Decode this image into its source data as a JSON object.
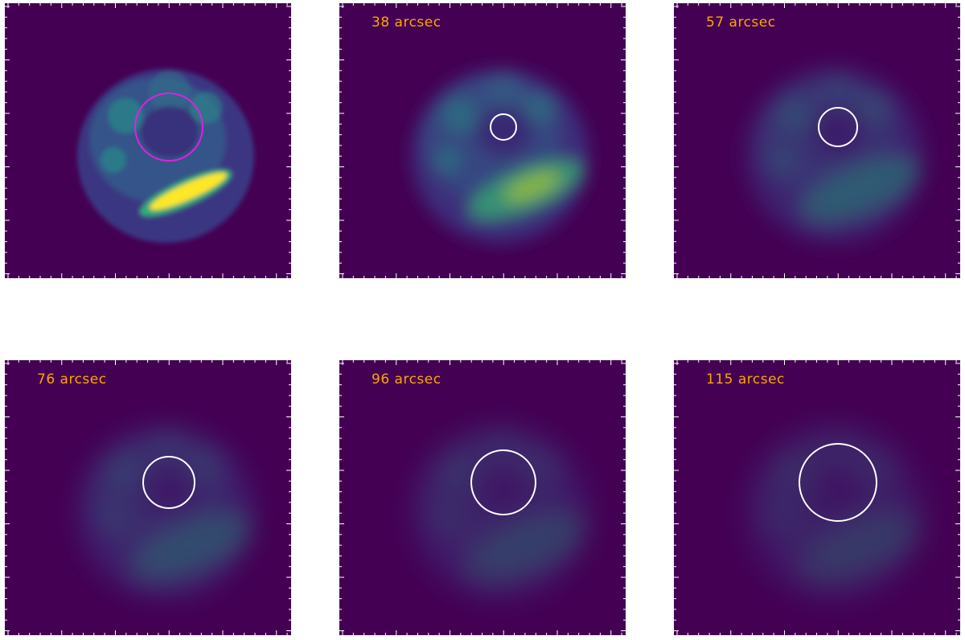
{
  "figure": {
    "label_color": "#FFA500",
    "background_color": "#440154",
    "panels": [
      {
        "label": "",
        "circle_color": "#E020E0",
        "circle_scale": 1.0
      },
      {
        "label": "38 arcsec",
        "circle_color": "#FFFFFF",
        "circle_scale": 0.38
      },
      {
        "label": "57 arcsec",
        "circle_color": "#FFFFFF",
        "circle_scale": 0.57
      },
      {
        "label": "76 arcsec",
        "circle_color": "#FFFFFF",
        "circle_scale": 0.76
      },
      {
        "label": "96 arcsec",
        "circle_color": "#FFFFFF",
        "circle_scale": 0.96
      },
      {
        "label": "115 arcsec",
        "circle_color": "#FFFFFF",
        "circle_scale": 1.15
      }
    ]
  }
}
